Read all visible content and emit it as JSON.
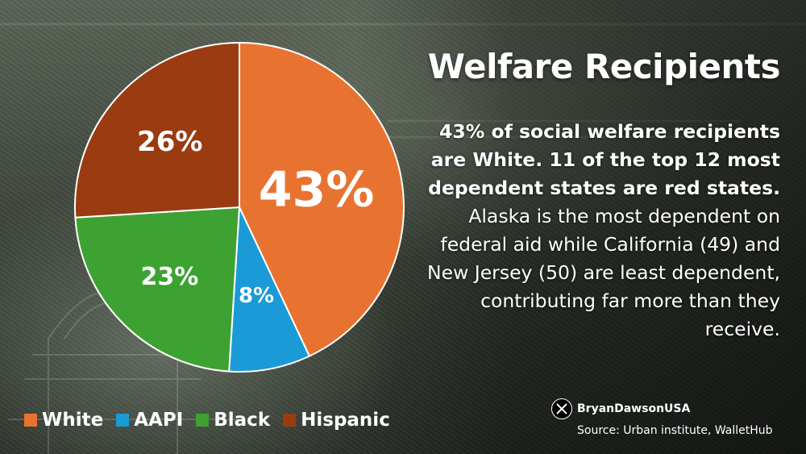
{
  "title": "Welfare Recipients",
  "body": {
    "bold": "43% of social welfare recipients are White. 11 of the top 12 most dependent states are red states.",
    "regular": " Alaska is the most dependent on federal aid while California (49) and New Jersey (50) are least dependent, contributing far more than they receive."
  },
  "chart_data": {
    "type": "pie",
    "title": "",
    "slices": [
      {
        "label": "White",
        "value": 43,
        "display": "43%",
        "color": "#E87330"
      },
      {
        "label": "AAPI",
        "value": 8,
        "display": "8%",
        "color": "#1A9AD6"
      },
      {
        "label": "Black",
        "value": 23,
        "display": "23%",
        "color": "#3EA232"
      },
      {
        "label": "Hispanic",
        "value": 26,
        "display": "26%",
        "color": "#9A3B11"
      }
    ],
    "start_angle_deg": 0,
    "direction": "clockwise",
    "legend_position": "bottom-left"
  },
  "legend": [
    {
      "label": "White",
      "color": "#E87330"
    },
    {
      "label": "AAPI",
      "color": "#1A9AD6"
    },
    {
      "label": "Black",
      "color": "#3EA232"
    },
    {
      "label": "Hispanic",
      "color": "#9A3B11"
    }
  ],
  "handle": {
    "icon": "x-logo-icon",
    "text": "BryanDawsonUSA"
  },
  "source": "Source: Urban institute, WalletHub"
}
